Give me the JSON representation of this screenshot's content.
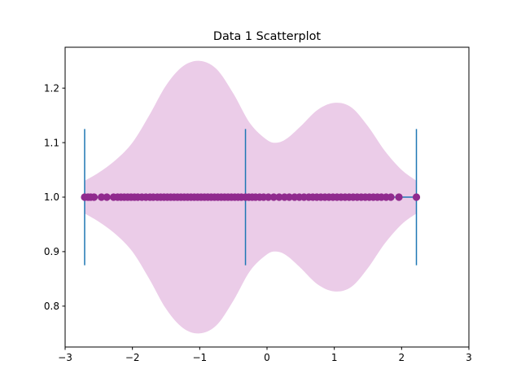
{
  "chart_data": {
    "type": "violin",
    "title": "Data 1 Scatterplot",
    "xlabel": "",
    "ylabel": "",
    "xlim": [
      -3,
      3
    ],
    "ylim": [
      0.725,
      1.275
    ],
    "x_ticks": [
      -3,
      -2,
      -1,
      0,
      1,
      2,
      3
    ],
    "y_ticks": [
      0.8,
      0.9,
      1.0,
      1.1,
      1.2
    ],
    "x_tick_labels": [
      "−3",
      "−2",
      "−1",
      "0",
      "1",
      "2",
      "3"
    ],
    "y_tick_labels": [
      "0.8",
      "0.9",
      "1.0",
      "1.1",
      "1.2"
    ],
    "baseline_y": 1.0,
    "violin_color": "#ebcce8",
    "line_color": "#1f77b4",
    "point_color": "#902a8e",
    "grid": false,
    "violin_min": -2.71,
    "violin_max": 2.22,
    "violin_median": -0.32,
    "cap_half_height": 0.125,
    "density_profile": {
      "x": [
        -2.71,
        -2.5,
        -2.25,
        -2.0,
        -1.75,
        -1.5,
        -1.25,
        -1.0,
        -0.75,
        -0.5,
        -0.25,
        0.0,
        0.15,
        0.3,
        0.5,
        0.75,
        1.0,
        1.25,
        1.5,
        1.75,
        2.0,
        2.22
      ],
      "half_width": [
        0.03,
        0.045,
        0.068,
        0.1,
        0.15,
        0.205,
        0.24,
        0.25,
        0.235,
        0.19,
        0.135,
        0.105,
        0.1,
        0.108,
        0.13,
        0.16,
        0.173,
        0.165,
        0.13,
        0.085,
        0.05,
        0.03
      ]
    },
    "points_x": [
      -2.71,
      -2.66,
      -2.62,
      -2.57,
      -2.46,
      -2.38,
      -2.28,
      -2.22,
      -2.17,
      -2.12,
      -2.07,
      -2.02,
      -1.97,
      -1.92,
      -1.86,
      -1.8,
      -1.74,
      -1.69,
      -1.63,
      -1.58,
      -1.53,
      -1.48,
      -1.43,
      -1.38,
      -1.33,
      -1.28,
      -1.23,
      -1.18,
      -1.13,
      -1.08,
      -1.03,
      -0.98,
      -0.93,
      -0.88,
      -0.83,
      -0.78,
      -0.73,
      -0.68,
      -0.63,
      -0.58,
      -0.53,
      -0.48,
      -0.43,
      -0.38,
      -0.32,
      -0.27,
      -0.22,
      -0.17,
      -0.11,
      -0.05,
      0.02,
      0.1,
      0.18,
      0.26,
      0.33,
      0.41,
      0.48,
      0.55,
      0.62,
      0.68,
      0.74,
      0.8,
      0.86,
      0.92,
      0.98,
      1.04,
      1.1,
      1.16,
      1.22,
      1.28,
      1.34,
      1.4,
      1.46,
      1.52,
      1.58,
      1.64,
      1.7,
      1.77,
      1.84,
      1.96,
      2.22
    ]
  }
}
